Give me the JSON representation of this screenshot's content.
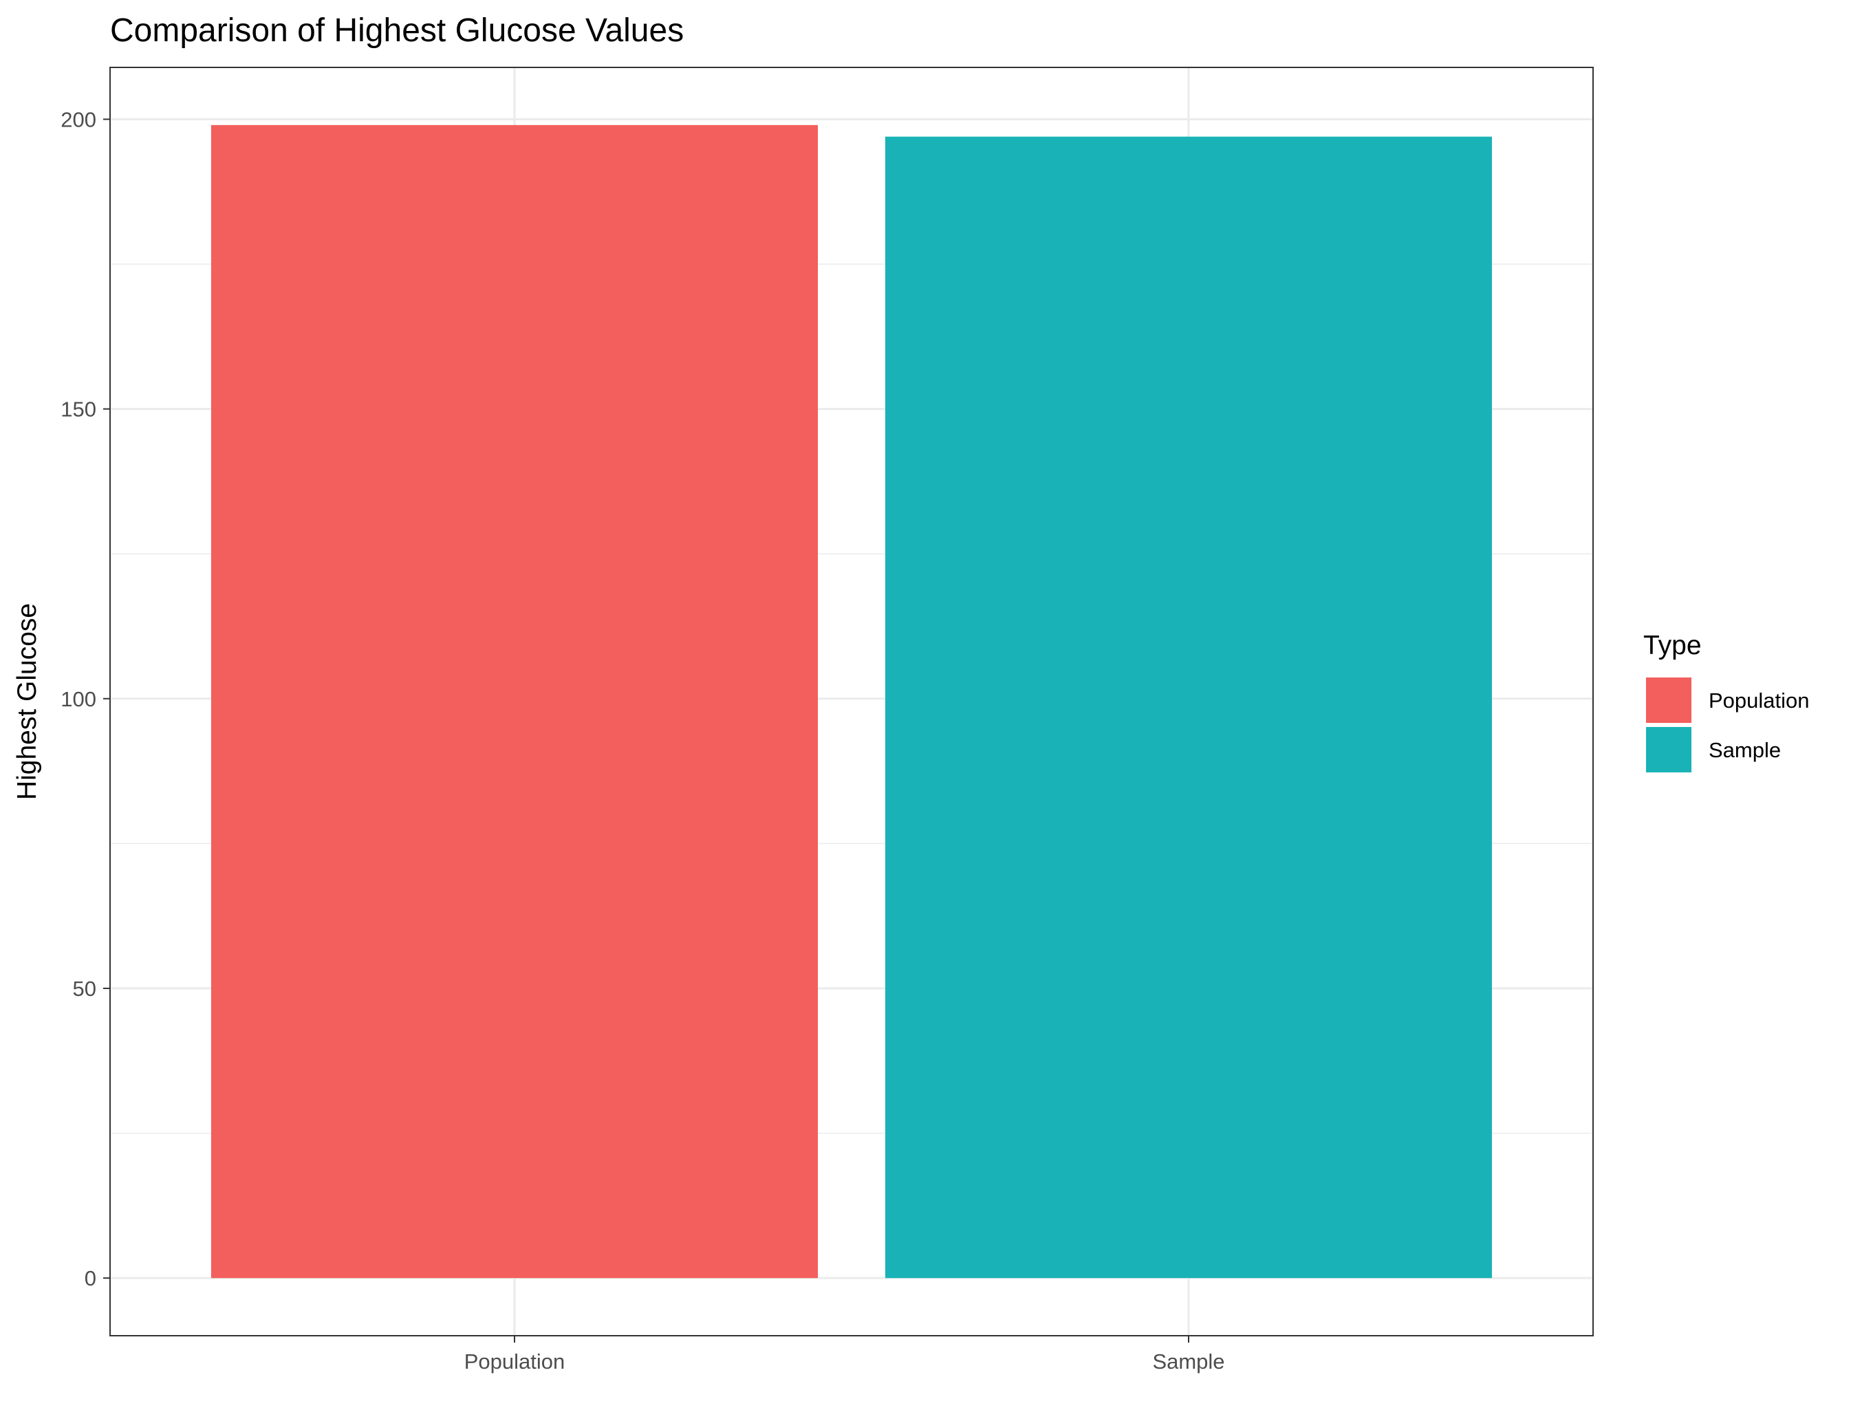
{
  "chart_data": {
    "type": "bar",
    "title": "Comparison of Highest Glucose Values",
    "xlabel": "",
    "ylabel": "Highest Glucose",
    "categories": [
      "Population",
      "Sample"
    ],
    "values": [
      199,
      197
    ],
    "ylim": [
      -9.95,
      208.95
    ],
    "yticks": [
      0,
      50,
      100,
      150,
      200
    ],
    "grid": true,
    "legend": {
      "title": "Type",
      "position": "right",
      "items": [
        {
          "label": "Population",
          "color": "#F25F5C"
        },
        {
          "label": "Sample",
          "color": "#19B3B7"
        }
      ]
    },
    "colors": {
      "Population": "#F25F5C",
      "Sample": "#19B3B7"
    }
  }
}
